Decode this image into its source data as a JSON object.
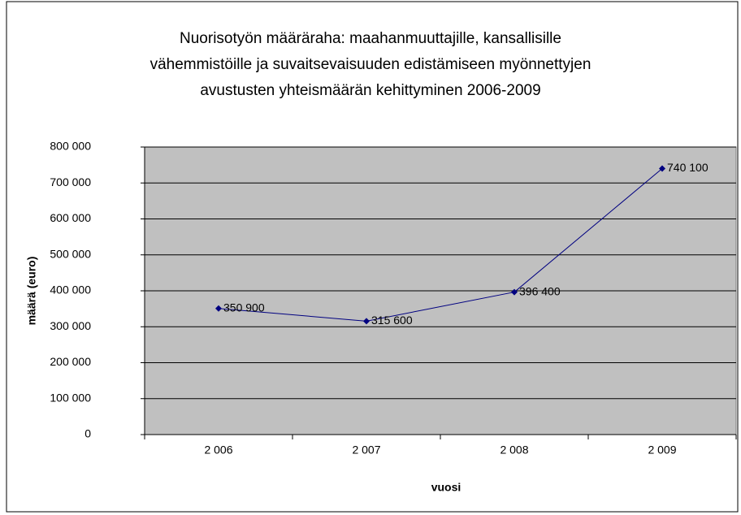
{
  "chart_data": {
    "type": "line",
    "title": [
      "Nuorisotyön määräraha: maahanmuuttajille, kansallisille",
      "vähemmistöille ja suvaitsevaisuuden edistämiseen myönnettyjen",
      "avustusten yhteismäärän kehittyminen 2006-2009"
    ],
    "x_label": "vuosi",
    "y_label": "määrä (euro)",
    "categories": [
      "2 006",
      "2 007",
      "2 008",
      "2 009"
    ],
    "series": [
      {
        "name": "määrä",
        "color": "#000080",
        "values": [
          350900,
          315600,
          396400,
          740100
        ],
        "value_labels": [
          "350 900",
          "315 600",
          "396 400",
          "740 100"
        ]
      }
    ],
    "ylim": [
      0,
      800000
    ],
    "yticks": [
      0,
      {
        "value": 100000,
        "label": "100 000"
      },
      {
        "value": 200000,
        "label": "200 000"
      },
      {
        "value": 300000,
        "label": "300 000"
      },
      {
        "value": 400000,
        "label": "400 000"
      },
      {
        "value": 500000,
        "label": "500 000"
      },
      {
        "value": 600000,
        "label": "600 000"
      },
      {
        "value": 700000,
        "label": "700 000"
      },
      {
        "value": 800000,
        "label": "800 000"
      }
    ],
    "grid": true,
    "plot_background": "#c0c0c0"
  }
}
